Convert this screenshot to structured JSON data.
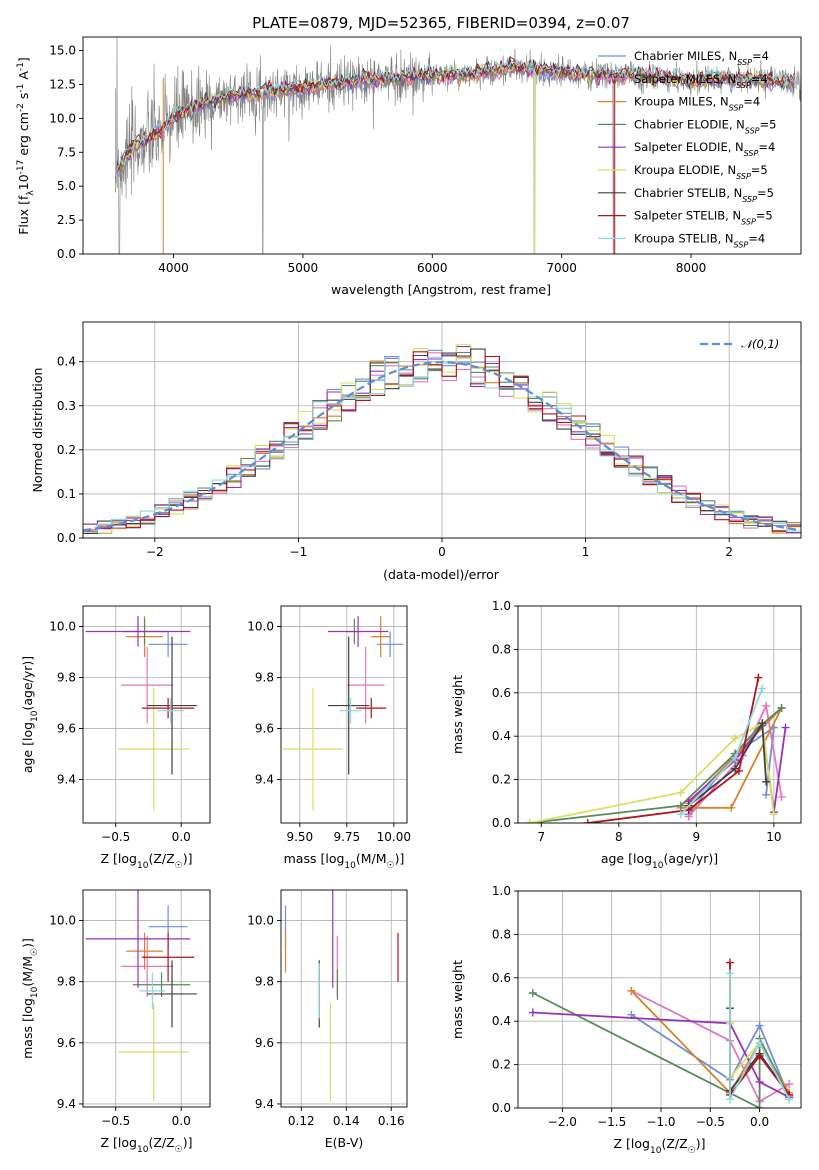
{
  "colors": [
    "#6f8fd9",
    "#e377c2",
    "#d9822b",
    "#5a8a5a",
    "#9a32b8",
    "#d8e060",
    "#404040",
    "#b0141e",
    "#8fd6e0"
  ],
  "chart_data": [
    {
      "id": "spectrum",
      "type": "line",
      "title": "PLATE=0879, MJD=52365, FIBERID=0394, z=0.07",
      "xlabel": "wavelength [Angstrom, rest frame]",
      "ylabel": "Flux [f_λ 10^-17 erg cm^-2 s^-1 A^-1]",
      "xlim": [
        3300,
        8850
      ],
      "ylim": [
        0,
        16
      ],
      "xticks": [
        4000,
        5000,
        6000,
        7000,
        8000
      ],
      "yticks": [
        0.0,
        2.5,
        5.0,
        7.5,
        10.0,
        12.5,
        15.0
      ],
      "grid": false,
      "legend_position": "top-right",
      "series": [
        {
          "name": "Chabrier MILES, N_SSP=4"
        },
        {
          "name": "Salpeter MILES, N_SSP=4"
        },
        {
          "name": "Kroupa MILES, N_SSP=4"
        },
        {
          "name": "Chabrier ELODIE, N_SSP=5"
        },
        {
          "name": "Salpeter ELODIE, N_SSP=4"
        },
        {
          "name": "Kroupa ELODIE, N_SSP=5"
        },
        {
          "name": "Chabrier STELIB, N_SSP=5"
        },
        {
          "name": "Salpeter STELIB, N_SSP=5"
        },
        {
          "name": "Kroupa STELIB, N_SSP=4"
        }
      ],
      "continuum": {
        "x": [
          3550,
          3700,
          3900,
          4000,
          4200,
          4500,
          4800,
          5000,
          5300,
          5600,
          5900,
          6000,
          6200,
          6500,
          6600,
          6800,
          7000,
          7200,
          7500,
          7800,
          8000,
          8300,
          8600,
          8800
        ],
        "y": [
          6.0,
          8.0,
          9.0,
          10.0,
          11.0,
          11.8,
          12.0,
          12.3,
          12.6,
          12.9,
          13.1,
          13.2,
          13.2,
          13.5,
          13.8,
          13.6,
          13.4,
          13.2,
          13.2,
          13.0,
          12.8,
          12.9,
          12.8,
          12.7
        ]
      }
    },
    {
      "id": "residuals",
      "type": "line",
      "xlabel": "(data-model)/error",
      "ylabel": "Normed distribution",
      "xlim": [
        -2.5,
        2.5
      ],
      "ylim": [
        0,
        0.49
      ],
      "xticks": [
        -2,
        -1,
        0,
        1,
        2
      ],
      "yticks": [
        0.0,
        0.1,
        0.2,
        0.3,
        0.4
      ],
      "grid": true,
      "legend_position": "top-right",
      "reference": {
        "name": "𝒩(0,1)",
        "mu": 0,
        "sigma": 1
      }
    },
    {
      "id": "age_vs_Z",
      "type": "scatter",
      "xlabel": "Z [log10(Z/Z☉)]",
      "ylabel": "age [log10(age/yr)]",
      "xlim": [
        -0.75,
        0.22
      ],
      "ylim": [
        9.23,
        10.08
      ],
      "xticks": [
        -0.5,
        0.0
      ],
      "yticks": [
        9.4,
        9.6,
        9.8,
        10.0
      ],
      "grid": true,
      "points": [
        {
          "x": -0.1,
          "xerr": 0.15,
          "y": 9.93,
          "yerr": 0.05
        },
        {
          "x": -0.26,
          "xerr": 0.2,
          "y": 9.77,
          "yerr": 0.15
        },
        {
          "x": -0.28,
          "xerr": 0.14,
          "y": 9.96,
          "yerr": 0.08
        },
        {
          "x": -0.28,
          "xerr": 0.17,
          "y": 9.98,
          "yerr": 0.05
        },
        {
          "x": -0.33,
          "xerr": 0.4,
          "y": 9.98,
          "yerr": 0.06
        },
        {
          "x": -0.21,
          "xerr": 0.27,
          "y": 9.52,
          "yerr": 0.24
        },
        {
          "x": -0.07,
          "xerr": 0.19,
          "y": 9.69,
          "yerr": 0.27
        },
        {
          "x": -0.1,
          "xerr": 0.2,
          "y": 9.68,
          "yerr": 0.04
        },
        {
          "x": -0.08,
          "xerr": 0.1,
          "y": 9.67,
          "yerr": 0.05
        }
      ]
    },
    {
      "id": "age_vs_mass",
      "type": "scatter",
      "xlabel": "mass [log10(M/M☉)]",
      "ylabel": "",
      "xlim": [
        9.4,
        10.07
      ],
      "ylim": [
        9.23,
        10.08
      ],
      "xticks": [
        9.5,
        9.75,
        10.0
      ],
      "yticks": [
        9.4,
        9.6,
        9.8,
        10.0
      ],
      "grid": true,
      "points": [
        {
          "x": 9.98,
          "xerr": 0.07,
          "y": 9.93,
          "yerr": 0.05
        },
        {
          "x": 9.85,
          "xerr": 0.1,
          "y": 9.77,
          "yerr": 0.15
        },
        {
          "x": 9.93,
          "xerr": 0.05,
          "y": 9.96,
          "yerr": 0.08
        },
        {
          "x": 9.79,
          "xerr": 0.04,
          "y": 9.98,
          "yerr": 0.05
        },
        {
          "x": 9.81,
          "xerr": 0.16,
          "y": 9.98,
          "yerr": 0.06
        },
        {
          "x": 9.57,
          "xerr": 0.16,
          "y": 9.52,
          "yerr": 0.24
        },
        {
          "x": 9.76,
          "xerr": 0.11,
          "y": 9.69,
          "yerr": 0.27
        },
        {
          "x": 9.88,
          "xerr": 0.08,
          "y": 9.68,
          "yerr": 0.04
        },
        {
          "x": 9.77,
          "xerr": 0.06,
          "y": 9.67,
          "yerr": 0.05
        }
      ]
    },
    {
      "id": "massweight_vs_age",
      "type": "line",
      "xlabel": "age [log10(age/yr)]",
      "ylabel": "mass weight",
      "xlim": [
        6.7,
        10.35
      ],
      "ylim": [
        0,
        1.0
      ],
      "xticks": [
        7,
        8,
        9,
        10
      ],
      "yticks": [
        0.0,
        0.2,
        0.4,
        0.6,
        0.8,
        1.0
      ],
      "grid": true,
      "series": [
        {
          "x": [
            8.9,
            9.5,
            10.0,
            9.9
          ],
          "y": [
            0.04,
            0.32,
            0.44,
            0.13
          ]
        },
        {
          "x": [
            8.9,
            9.6,
            9.9,
            10.1
          ],
          "y": [
            0.03,
            0.31,
            0.54,
            0.12
          ]
        },
        {
          "x": [
            8.8,
            9.45,
            10.1,
            8.9
          ],
          "y": [
            0.07,
            0.07,
            0.53,
            0.09
          ]
        },
        {
          "x": [
            6.85,
            8.8,
            9.5,
            9.8,
            10.1
          ],
          "y": [
            0.0,
            0.08,
            0.32,
            0.44,
            0.53
          ]
        },
        {
          "x": [
            8.9,
            9.5,
            9.85,
            10.0,
            10.15
          ],
          "y": [
            0.1,
            0.29,
            0.45,
            0.05,
            0.44
          ]
        },
        {
          "x": [
            6.85,
            8.8,
            9.5,
            9.85,
            10.0
          ],
          "y": [
            0.0,
            0.14,
            0.39,
            0.46,
            0.04
          ]
        },
        {
          "x": [
            8.9,
            9.5,
            9.85,
            9.9
          ],
          "y": [
            0.08,
            0.25,
            0.46,
            0.19
          ]
        },
        {
          "x": [
            7.6,
            8.9,
            9.55,
            9.8
          ],
          "y": [
            0.0,
            0.06,
            0.24,
            0.67
          ]
        },
        {
          "x": [
            8.8,
            9.5,
            9.85
          ],
          "y": [
            0.04,
            0.3,
            0.62
          ]
        }
      ]
    },
    {
      "id": "mass_vs_Z",
      "type": "scatter",
      "xlabel": "Z [log10(Z/Z☉)]",
      "ylabel": "mass [log10(M/M☉)]",
      "xlim": [
        -0.75,
        0.22
      ],
      "ylim": [
        9.39,
        10.1
      ],
      "xticks": [
        -0.5,
        0.0
      ],
      "yticks": [
        9.4,
        9.6,
        9.8,
        10.0
      ],
      "grid": true,
      "points": [
        {
          "x": -0.1,
          "xerr": 0.15,
          "y": 9.98,
          "yerr": 0.07
        },
        {
          "x": -0.26,
          "xerr": 0.2,
          "y": 9.85,
          "yerr": 0.1
        },
        {
          "x": -0.28,
          "xerr": 0.14,
          "y": 9.9,
          "yerr": 0.06
        },
        {
          "x": -0.15,
          "xerr": 0.22,
          "y": 9.79,
          "yerr": 0.04
        },
        {
          "x": -0.33,
          "xerr": 0.4,
          "y": 9.94,
          "yerr": 0.16
        },
        {
          "x": -0.21,
          "xerr": 0.27,
          "y": 9.57,
          "yerr": 0.16
        },
        {
          "x": -0.07,
          "xerr": 0.19,
          "y": 9.76,
          "yerr": 0.11
        },
        {
          "x": -0.1,
          "xerr": 0.2,
          "y": 9.88,
          "yerr": 0.08
        },
        {
          "x": -0.22,
          "xerr": 0.1,
          "y": 9.77,
          "yerr": 0.06
        }
      ]
    },
    {
      "id": "mass_vs_EBV",
      "type": "scatter",
      "xlabel": "E(B-V)",
      "ylabel": "",
      "xlim": [
        0.111,
        0.167
      ],
      "ylim": [
        9.39,
        10.1
      ],
      "xticks": [
        0.12,
        0.14,
        0.16
      ],
      "yticks": [
        9.4,
        9.6,
        9.8,
        10.0
      ],
      "grid": true,
      "points": [
        {
          "x": 0.113,
          "y": 9.98,
          "yerr": 0.07
        },
        {
          "x": 0.136,
          "y": 9.85,
          "yerr": 0.1
        },
        {
          "x": 0.113,
          "y": 9.9,
          "yerr": 0.07
        },
        {
          "x": 0.1361,
          "y": 9.79,
          "yerr": 0.05
        },
        {
          "x": 0.134,
          "y": 9.94,
          "yerr": 0.16
        },
        {
          "x": 0.133,
          "y": 9.57,
          "yerr": 0.16
        },
        {
          "x": 0.128,
          "y": 9.76,
          "yerr": 0.11
        },
        {
          "x": 0.163,
          "y": 9.88,
          "yerr": 0.08
        },
        {
          "x": 0.128,
          "y": 9.77,
          "yerr": 0.09
        }
      ]
    },
    {
      "id": "massweight_vs_Z",
      "type": "line",
      "xlabel": "Z [log10(Z/Z☉)]",
      "ylabel": "mass weight",
      "xlim": [
        -2.45,
        0.42
      ],
      "ylim": [
        0,
        1.0
      ],
      "xticks": [
        -2.0,
        -1.5,
        -1.0,
        -0.5,
        0.0
      ],
      "yticks": [
        0.0,
        0.2,
        0.4,
        0.6,
        0.8,
        1.0
      ],
      "grid": true,
      "series": [
        {
          "x": [
            -1.3,
            -0.3,
            0.0,
            0.3
          ],
          "y": [
            0.43,
            0.13,
            0.38,
            0.05
          ]
        },
        {
          "x": [
            -1.3,
            -0.3,
            0.0,
            0.3
          ],
          "y": [
            0.54,
            0.31,
            0.03,
            0.11
          ]
        },
        {
          "x": [
            -1.3,
            -0.3,
            0.0,
            0.3
          ],
          "y": [
            0.54,
            0.07,
            0.3,
            0.07
          ]
        },
        {
          "x": [
            -2.3,
            0.0,
            0.0,
            0.3
          ],
          "y": [
            0.53,
            0.0,
            0.32,
            0.05
          ]
        },
        {
          "x": [
            -2.3,
            -0.3,
            0.0,
            0.3
          ],
          "y": [
            0.44,
            0.39,
            0.12,
            0.05
          ]
        },
        {
          "x": [
            -0.3,
            -0.3,
            0.0,
            0.3
          ],
          "y": [
            0.39,
            0.14,
            0.3,
            0.04
          ]
        },
        {
          "x": [
            -0.3,
            -0.3,
            0.0,
            0.3
          ],
          "y": [
            0.46,
            0.08,
            0.25,
            0.06
          ]
        },
        {
          "x": [
            -0.3,
            -0.3,
            0.0,
            0.3
          ],
          "y": [
            0.67,
            0.06,
            0.24,
            0.06
          ]
        },
        {
          "x": [
            -0.3,
            -0.3,
            0.0,
            0.3
          ],
          "y": [
            0.62,
            0.04,
            0.3,
            0.04
          ]
        }
      ]
    }
  ]
}
